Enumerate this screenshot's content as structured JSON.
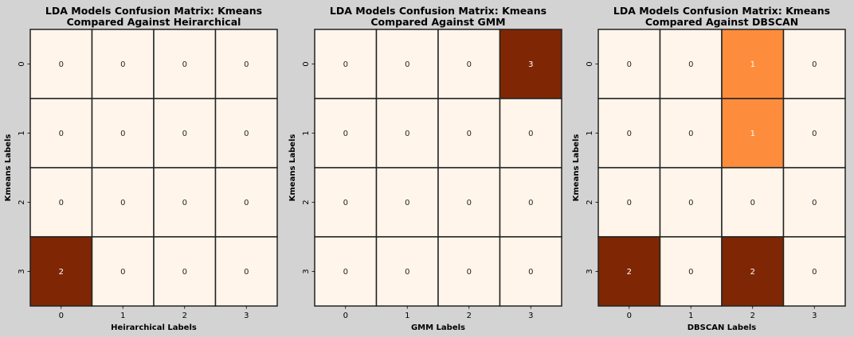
{
  "chart_data": [
    {
      "type": "heatmap",
      "title": [
        "LDA Models Confusion Matrix: Kmeans",
        "Compared Against Heirarchical"
      ],
      "xlabel": "Heirarchical Labels",
      "ylabel": "Kmeans Labels",
      "x_ticks": [
        "0",
        "1",
        "2",
        "3"
      ],
      "y_ticks": [
        "0",
        "1",
        "2",
        "3"
      ],
      "matrix": [
        [
          0,
          0,
          0,
          0
        ],
        [
          0,
          0,
          0,
          0
        ],
        [
          0,
          0,
          0,
          0
        ],
        [
          2,
          0,
          0,
          0
        ]
      ],
      "colormap": "Oranges",
      "grid": true
    },
    {
      "type": "heatmap",
      "title": [
        "LDA Models Confusion Matrix: Kmeans",
        "Compared Against GMM"
      ],
      "xlabel": "GMM Labels",
      "ylabel": "Kmeans Labels",
      "x_ticks": [
        "0",
        "1",
        "2",
        "3"
      ],
      "y_ticks": [
        "0",
        "1",
        "2",
        "3"
      ],
      "matrix": [
        [
          0,
          0,
          0,
          3
        ],
        [
          0,
          0,
          0,
          0
        ],
        [
          0,
          0,
          0,
          0
        ],
        [
          0,
          0,
          0,
          0
        ]
      ],
      "colormap": "Oranges",
      "grid": true
    },
    {
      "type": "heatmap",
      "title": [
        "LDA Models Confusion Matrix: Kmeans",
        "Compared Against DBSCAN"
      ],
      "xlabel": "DBSCAN Labels",
      "ylabel": "Kmeans Labels",
      "x_ticks": [
        "0",
        "1",
        "2",
        "3"
      ],
      "y_ticks": [
        "0",
        "1",
        "2",
        "3"
      ],
      "matrix": [
        [
          0,
          0,
          1,
          0
        ],
        [
          0,
          0,
          1,
          0
        ],
        [
          0,
          0,
          0,
          0
        ],
        [
          2,
          0,
          2,
          0
        ]
      ],
      "colormap": "Oranges",
      "grid": true
    }
  ],
  "colors": {
    "background": "#d3d3d3",
    "cell_min": "#fff5eb",
    "cell_mid": "#fd8d3c",
    "cell_max": "#7f2704",
    "cell_border": "#222222"
  }
}
